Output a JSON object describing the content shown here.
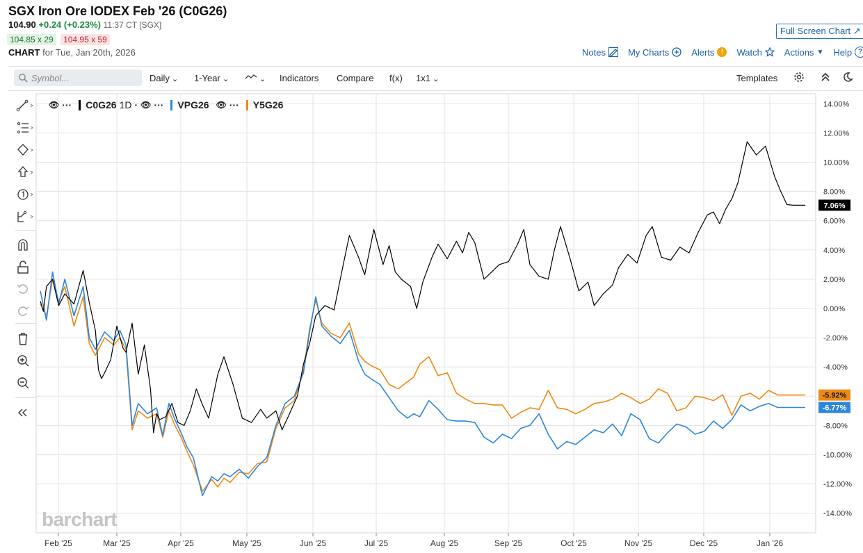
{
  "header": {
    "title": "SGX Iron Ore IODEX Feb '26 (C0G26)",
    "last": "104.90",
    "change": "+0.24 (+0.23%)",
    "time": "11:37 CT [SGX]",
    "bid": "104.85 x 29",
    "ask": "104.95 x 59",
    "chart_label": "CHART",
    "chart_date": "for Tue, Jan 20th, 2026",
    "full_screen": "Full Screen Chart"
  },
  "links": {
    "notes": "Notes",
    "my_charts": "My Charts",
    "alerts": "Alerts",
    "watch": "Watch",
    "actions": "Actions",
    "help": "Help"
  },
  "toolbar": {
    "symbol_placeholder": "Symbol...",
    "period": "Daily",
    "range": "1-Year",
    "indicators": "Indicators",
    "compare": "Compare",
    "fx": "f(x)",
    "layout": "1x1",
    "templates": "Templates"
  },
  "legend": {
    "s1": "C0G26",
    "s1_interval": "1D",
    "s2": "VPG26",
    "s3": "Y5G26"
  },
  "watermark": "barchart",
  "colors": {
    "c0g26": "#000000",
    "vpg26": "#2d86d9",
    "y5g26": "#ee8a12"
  },
  "chart_data": {
    "type": "line",
    "x_labels": [
      "Feb '25",
      "Mar '25",
      "Apr '25",
      "May '25",
      "Jun '25",
      "Jul '25",
      "Aug '25",
      "Sep '25",
      "Oct '25",
      "Nov '25",
      "Dec '25",
      "Jan '26"
    ],
    "y_ticks": [
      "14.00%",
      "12.00%",
      "10.00%",
      "8.00%",
      "6.00%",
      "4.00%",
      "2.00%",
      "0.00%",
      "-2.00%",
      "-4.00%",
      "-6.00%",
      "-8.00%",
      "-10.00%",
      "-12.00%",
      "-14.00%"
    ],
    "ylim": [
      -14.5,
      14.5
    ],
    "last_labels": {
      "C0G26": "7.06%",
      "Y5G26": "-5.92%",
      "VPG26": "-6.77%"
    },
    "series": [
      {
        "name": "C0G26",
        "x": [
          0,
          1,
          2,
          4,
          6,
          8,
          11,
          14,
          16,
          18,
          19,
          20,
          21,
          23,
          25,
          27,
          28,
          30,
          32,
          34,
          36,
          37,
          38,
          39,
          41,
          43,
          45,
          47,
          49,
          51,
          53,
          55,
          58,
          60,
          63,
          66,
          69,
          72,
          74,
          77,
          79,
          81,
          84,
          86,
          88,
          90,
          93,
          96,
          99,
          101,
          104,
          106,
          109,
          112,
          114,
          116,
          118,
          121,
          123,
          125,
          128,
          130,
          133,
          136,
          138,
          140,
          142,
          145,
          148,
          150,
          153,
          156,
          158,
          160,
          163,
          166,
          168,
          170,
          173,
          176,
          179,
          181,
          184,
          187,
          189,
          192,
          195,
          198,
          200,
          203,
          206,
          209,
          212,
          215,
          218,
          220,
          222,
          224,
          226,
          228,
          231,
          234,
          237,
          240,
          242,
          244,
          246,
          248,
          250
        ],
        "values": [
          0.5,
          -0.2,
          1.5,
          2.0,
          0.2,
          1.0,
          0.3,
          2.6,
          0.4,
          -1.5,
          -4.2,
          -4.8,
          -4.4,
          -3.5,
          -1.2,
          -2.7,
          -3.0,
          -1.0,
          -4.5,
          -2.5,
          -5.5,
          -8.5,
          -7.2,
          -7.6,
          -7.4,
          -6.5,
          -7.8,
          -8.0,
          -7.0,
          -5.5,
          -6.6,
          -7.5,
          -4.5,
          -3.3,
          -5.2,
          -7.5,
          -7.8,
          -6.9,
          -7.5,
          -7.0,
          -8.3,
          -7.4,
          -6.0,
          -3.8,
          -2.4,
          -0.5,
          0.2,
          -0.1,
          3.0,
          5.0,
          3.5,
          2.3,
          5.4,
          3.0,
          4.3,
          2.5,
          2.0,
          1.5,
          0.0,
          1.8,
          3.5,
          4.4,
          3.4,
          4.6,
          3.8,
          5.2,
          4.5,
          2.0,
          2.6,
          3.0,
          3.2,
          4.4,
          5.4,
          3.0,
          2.2,
          2.0,
          4.0,
          5.6,
          3.5,
          1.2,
          1.8,
          0.2,
          1.0,
          1.6,
          2.8,
          3.7,
          3.1,
          5.0,
          5.6,
          3.5,
          3.3,
          4.2,
          3.8,
          5.2,
          6.4,
          6.6,
          5.8,
          6.8,
          7.5,
          8.6,
          11.4,
          10.5,
          11.1,
          9.0,
          8.0,
          7.1,
          7.06,
          7.06,
          7.06
        ],
        "color": "#000000"
      },
      {
        "name": "VPG26",
        "x": [
          0,
          2,
          4,
          6,
          8,
          11,
          14,
          16,
          18,
          21,
          24,
          26,
          28,
          30,
          32,
          35,
          38,
          40,
          42,
          44,
          46,
          48,
          50,
          53,
          56,
          58,
          60,
          62,
          65,
          68,
          71,
          74,
          77,
          80,
          83,
          86,
          88,
          90,
          92,
          95,
          98,
          101,
          104,
          106,
          108,
          111,
          114,
          117,
          120,
          122,
          124,
          127,
          130,
          133,
          136,
          139,
          142,
          145,
          148,
          151,
          154,
          157,
          160,
          163,
          166,
          169,
          172,
          175,
          178,
          181,
          184,
          187,
          190,
          193,
          196,
          199,
          202,
          205,
          208,
          211,
          214,
          217,
          220,
          223,
          226,
          229,
          232,
          235,
          238,
          241,
          244,
          246,
          248,
          250
        ],
        "values": [
          1.2,
          -0.8,
          2.5,
          0.3,
          2.0,
          -0.5,
          1.5,
          -2.0,
          -2.8,
          -1.6,
          -2.2,
          -1.5,
          -2.5,
          -8.0,
          -6.5,
          -7.2,
          -6.8,
          -8.7,
          -6.5,
          -7.6,
          -8.5,
          -9.5,
          -10.2,
          -12.8,
          -11.5,
          -11.8,
          -11.3,
          -11.5,
          -11.0,
          -11.6,
          -10.8,
          -10.2,
          -8.0,
          -6.5,
          -6.0,
          -4.4,
          -1.6,
          0.8,
          -1.2,
          -1.9,
          -2.4,
          -1.5,
          -3.6,
          -4.5,
          -4.8,
          -5.2,
          -6.1,
          -7.0,
          -7.5,
          -7.2,
          -7.4,
          -6.3,
          -6.9,
          -7.6,
          -7.7,
          -7.7,
          -7.8,
          -8.8,
          -9.2,
          -8.6,
          -8.9,
          -8.2,
          -8.0,
          -7.2,
          -8.6,
          -9.6,
          -9.1,
          -9.3,
          -8.8,
          -8.3,
          -8.5,
          -7.9,
          -8.7,
          -7.2,
          -7.6,
          -8.9,
          -9.2,
          -8.5,
          -7.9,
          -8.1,
          -8.6,
          -8.4,
          -7.7,
          -8.2,
          -7.6,
          -6.6,
          -7.0,
          -6.7,
          -6.5,
          -6.77,
          -6.77,
          -6.77,
          -6.77,
          -6.77
        ],
        "color": "#2d86d9"
      },
      {
        "name": "Y5G26",
        "x": [
          0,
          2,
          4,
          6,
          8,
          11,
          14,
          16,
          18,
          21,
          24,
          26,
          28,
          30,
          32,
          35,
          38,
          40,
          42,
          44,
          46,
          48,
          50,
          53,
          56,
          58,
          60,
          62,
          65,
          68,
          71,
          74,
          77,
          80,
          83,
          86,
          88,
          90,
          92,
          95,
          98,
          101,
          104,
          106,
          108,
          111,
          114,
          117,
          120,
          122,
          124,
          127,
          130,
          133,
          136,
          139,
          142,
          145,
          148,
          151,
          154,
          157,
          160,
          163,
          166,
          169,
          172,
          175,
          178,
          181,
          184,
          187,
          190,
          193,
          196,
          199,
          202,
          205,
          208,
          211,
          214,
          217,
          220,
          223,
          226,
          229,
          232,
          235,
          238,
          241,
          244,
          246,
          248,
          250
        ],
        "values": [
          0.3,
          -0.5,
          2.0,
          0.5,
          1.5,
          -1.2,
          0.8,
          -2.4,
          -3.2,
          -2.0,
          -2.5,
          -2.0,
          -2.8,
          -8.3,
          -7.0,
          -7.5,
          -7.2,
          -8.8,
          -7.0,
          -8.0,
          -8.8,
          -9.8,
          -10.7,
          -12.5,
          -11.7,
          -12.2,
          -11.6,
          -11.9,
          -11.2,
          -11.3,
          -10.6,
          -10.5,
          -8.2,
          -6.8,
          -6.3,
          -4.2,
          -1.4,
          0.6,
          -1.0,
          -1.7,
          -2.0,
          -1.0,
          -3.1,
          -3.6,
          -3.9,
          -4.2,
          -5.2,
          -5.5,
          -5.0,
          -4.7,
          -3.8,
          -3.3,
          -4.6,
          -4.4,
          -5.8,
          -6.2,
          -6.5,
          -6.5,
          -6.6,
          -6.6,
          -7.5,
          -7.1,
          -6.8,
          -6.9,
          -5.6,
          -6.8,
          -6.9,
          -7.2,
          -6.9,
          -6.5,
          -6.4,
          -6.2,
          -5.8,
          -6.1,
          -6.5,
          -6.2,
          -5.5,
          -5.8,
          -7.0,
          -6.8,
          -6.0,
          -6.1,
          -6.3,
          -5.9,
          -7.3,
          -6.0,
          -5.8,
          -6.2,
          -5.6,
          -5.92,
          -5.92,
          -5.92,
          -5.92,
          -5.92
        ],
        "color": "#ee8a12"
      }
    ]
  }
}
